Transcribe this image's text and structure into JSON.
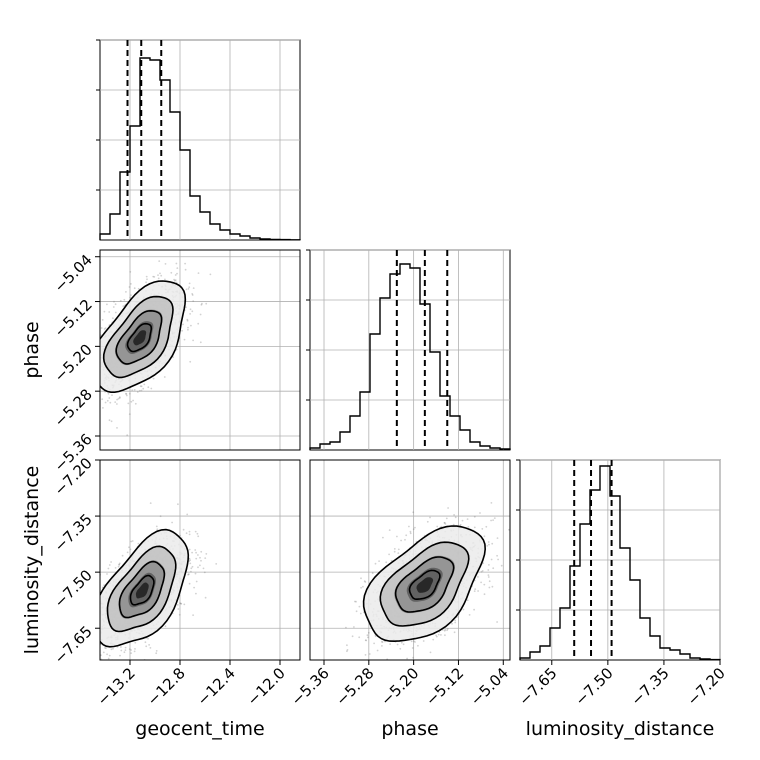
{
  "chart_data": {
    "type": "corner",
    "parameters": [
      "geocent_time",
      "phase",
      "luminosity_distance"
    ],
    "axis_labels": {
      "geocent_time": "geocent_time",
      "phase": "phase",
      "luminosity_distance": "luminosity_distance"
    },
    "ranges": {
      "geocent_time": [
        -13.44,
        -11.84
      ],
      "phase": [
        -5.385,
        -5.028
      ],
      "luminosity_distance": [
        -7.735,
        -7.2
      ]
    },
    "ticks": {
      "geocent_time": [
        -13.2,
        -12.8,
        -12.4,
        -12.0
      ],
      "phase": [
        -5.36,
        -5.28,
        -5.2,
        -5.12,
        -5.04
      ],
      "luminosity_distance": [
        -7.65,
        -7.5,
        -7.35,
        -7.2
      ]
    },
    "tick_labels": {
      "geocent_time": [
        "−13.2",
        "−12.8",
        "−12.4",
        "−12.0"
      ],
      "phase": [
        "−5.36",
        "−5.28",
        "−5.20",
        "−5.12",
        "−5.04"
      ],
      "luminosity_distance": [
        "−7.65",
        "−7.50",
        "−7.35",
        "−7.20"
      ]
    },
    "quantiles": {
      "geocent_time": [
        -13.22,
        -13.11,
        -12.95
      ],
      "phase": [
        -5.23,
        -5.18,
        -5.14
      ],
      "luminosity_distance": [
        -7.59,
        -7.545,
        -7.49
      ]
    },
    "histograms": {
      "geocent_time": {
        "edges_start": -13.44,
        "bin_width": 0.08,
        "counts": [
          0.03,
          0.13,
          0.34,
          0.57,
          0.91,
          0.9,
          0.8,
          0.64,
          0.45,
          0.22,
          0.14,
          0.08,
          0.05,
          0.03,
          0.02,
          0.01,
          0.005,
          0.003,
          0.002,
          0.001
        ]
      },
      "phase": {
        "edges_start": -5.385,
        "bin_width": 0.01785,
        "counts": [
          0.01,
          0.03,
          0.04,
          0.09,
          0.17,
          0.29,
          0.58,
          0.76,
          0.88,
          0.93,
          0.91,
          0.73,
          0.49,
          0.27,
          0.17,
          0.1,
          0.04,
          0.02,
          0.01,
          0.005
        ]
      },
      "luminosity_distance": {
        "edges_start": -7.735,
        "bin_width": 0.02675,
        "counts": [
          0.01,
          0.04,
          0.07,
          0.16,
          0.26,
          0.47,
          0.68,
          0.85,
          0.97,
          0.82,
          0.56,
          0.4,
          0.21,
          0.12,
          0.06,
          0.05,
          0.03,
          0.01,
          0.005,
          0.002
        ]
      }
    },
    "pairs": [
      {
        "x": "geocent_time",
        "y": "phase",
        "mean": [
          -13.12,
          -5.185
        ],
        "sd": [
          0.17,
          0.045
        ],
        "rho": 0.55
      },
      {
        "x": "geocent_time",
        "y": "luminosity_distance",
        "mean": [
          -13.1,
          -7.55
        ],
        "sd": [
          0.17,
          0.07
        ],
        "rho": 0.55
      },
      {
        "x": "phase",
        "y": "luminosity_distance",
        "mean": [
          -5.18,
          -7.535
        ],
        "sd": [
          0.048,
          0.07
        ],
        "rho": 0.5
      }
    ],
    "grid": true,
    "colors": {
      "marks": "#000000",
      "grid": "#b0b0b0",
      "samples": "#7f7f7f"
    }
  }
}
